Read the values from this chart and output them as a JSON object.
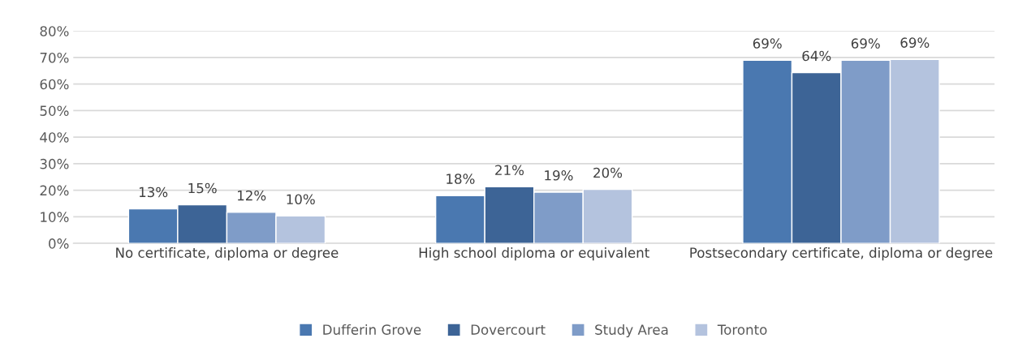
{
  "chart_data": {
    "type": "bar",
    "categories": [
      "No certificate, diploma or degree",
      "High school diploma or equivalent",
      "Postsecondary certificate, diploma or degree"
    ],
    "series": [
      {
        "name": "Dufferin Grove",
        "color": "#4a78b0",
        "values": [
          13.0,
          18.0,
          69.0
        ],
        "value_labels": [
          "13%",
          "18%",
          "69%"
        ]
      },
      {
        "name": "Dovercourt",
        "color": "#3d6496",
        "values": [
          14.5,
          21.3,
          64.3
        ],
        "value_labels": [
          "15%",
          "21%",
          "64%"
        ]
      },
      {
        "name": "Study Area",
        "color": "#7f9cc8",
        "values": [
          11.7,
          19.3,
          69.0
        ],
        "value_labels": [
          "12%",
          "19%",
          "69%"
        ]
      },
      {
        "name": "Toronto",
        "color": "#b4c3de",
        "values": [
          10.3,
          20.3,
          69.3
        ],
        "value_labels": [
          "10%",
          "20%",
          "69%"
        ]
      }
    ],
    "ylim": [
      0,
      80
    ],
    "yticks": [
      {
        "value": 0,
        "label": "0%"
      },
      {
        "value": 10,
        "label": "10%"
      },
      {
        "value": 20,
        "label": "20%"
      },
      {
        "value": 30,
        "label": "30%"
      },
      {
        "value": 40,
        "label": "40%"
      },
      {
        "value": 50,
        "label": "50%"
      },
      {
        "value": 60,
        "label": "60%"
      },
      {
        "value": 70,
        "label": "70%"
      },
      {
        "value": 80,
        "label": "80%"
      }
    ],
    "grid": "y",
    "legend": "bottom"
  }
}
